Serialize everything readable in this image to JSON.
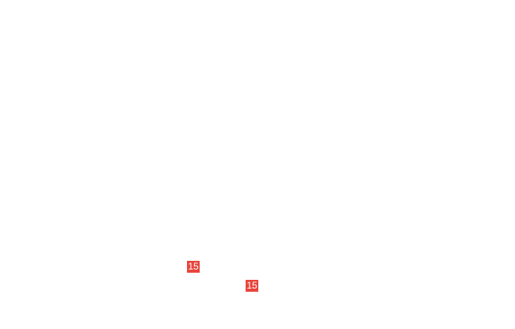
{
  "badges": [
    {
      "label": "15",
      "color": "#e8453c"
    },
    {
      "label": "15",
      "color": "#e8453c"
    }
  ]
}
